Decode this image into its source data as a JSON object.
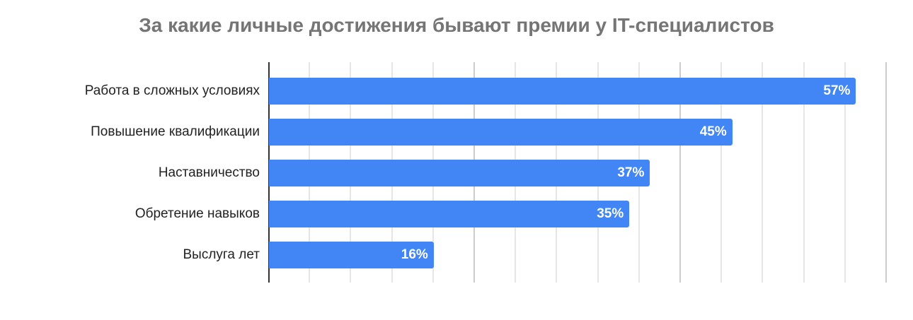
{
  "title": "За какие личные достижения бывают премии у IT-специалистов",
  "colors": {
    "bar": "#4285f4",
    "title": "#757575",
    "grid": "#e6e6e6",
    "axis": "#333333"
  },
  "chart_data": {
    "type": "bar",
    "orientation": "horizontal",
    "title": "За какие личные достижения бывают премии у IT-специалистов",
    "categories": [
      "Работа в сложных условиях",
      "Повышение квалификации",
      "Наставничество",
      "Обретение навыков",
      "Выслуга лет"
    ],
    "values": [
      57,
      45,
      37,
      35,
      16
    ],
    "labels": [
      "57%",
      "45%",
      "37%",
      "35%",
      "16%"
    ],
    "xlabel": "",
    "ylabel": "",
    "xlim": [
      0,
      60
    ],
    "grid": true,
    "legend": null
  }
}
